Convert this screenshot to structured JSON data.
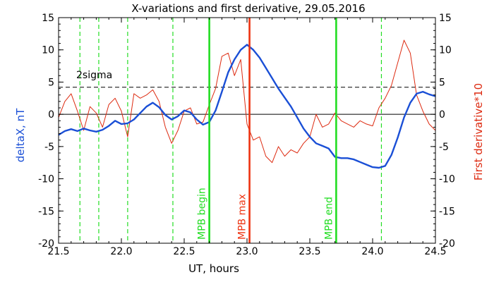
{
  "chart_data": {
    "type": "line",
    "title": "X-variations and first derivative, 29.05.2016",
    "xlabel": "UT, hours",
    "ylabel": "deltaX, nT",
    "ylabel_right": "First derivative*10",
    "xlim": [
      21.5,
      24.5
    ],
    "ylim": [
      -20,
      15
    ],
    "ylim_right": [
      -20,
      15
    ],
    "x_ticks": [
      "21.5",
      "22.0",
      "22.5",
      "23.0",
      "23.5",
      "24.0",
      "24.5"
    ],
    "y_ticks": [
      "-20",
      "-15",
      "-10",
      "-5",
      "0",
      "5",
      "10",
      "15"
    ],
    "y_ticks_right": [
      "-20",
      "-15",
      "-10",
      "-5",
      "0",
      "5",
      "10",
      "15"
    ],
    "colors": {
      "deltaX": "#1a4fd6",
      "derivative": "#dd2a10",
      "mpb_edge": "#22dd22",
      "mpb_max": "#ee3311",
      "axis_left_label": "#1a4fd6",
      "axis_right_label": "#dd2a10"
    },
    "annotations": {
      "sigma_label": "2sigma",
      "sigma_value": 4.2,
      "zero_line": 0,
      "dashed_verticals": [
        21.67,
        21.82,
        22.05,
        22.41,
        24.07
      ],
      "markers": [
        {
          "label": "MPB begin",
          "x": 22.7,
          "kind": "edge"
        },
        {
          "label": "MPB max",
          "x": 23.02,
          "kind": "max"
        },
        {
          "label": "MPB end",
          "x": 23.71,
          "kind": "edge"
        }
      ]
    },
    "series": [
      {
        "key": "deltaX",
        "x": [
          21.5,
          21.55,
          21.6,
          21.65,
          21.7,
          21.75,
          21.8,
          21.85,
          21.9,
          21.95,
          22.0,
          22.05,
          22.1,
          22.15,
          22.2,
          22.25,
          22.3,
          22.35,
          22.4,
          22.45,
          22.5,
          22.55,
          22.6,
          22.65,
          22.7,
          22.75,
          22.8,
          22.85,
          22.9,
          22.95,
          23.0,
          23.05,
          23.1,
          23.15,
          23.2,
          23.25,
          23.3,
          23.35,
          23.4,
          23.45,
          23.5,
          23.55,
          23.6,
          23.65,
          23.7,
          23.75,
          23.8,
          23.85,
          23.9,
          23.95,
          24.0,
          24.05,
          24.1,
          24.15,
          24.2,
          24.25,
          24.3,
          24.35,
          24.4,
          24.45,
          24.5
        ],
        "y": [
          -3.2,
          -2.6,
          -2.3,
          -2.6,
          -2.2,
          -2.5,
          -2.7,
          -2.4,
          -1.8,
          -1.0,
          -1.5,
          -1.4,
          -0.8,
          0.2,
          1.2,
          1.8,
          1.1,
          -0.1,
          -0.8,
          -0.3,
          0.6,
          0.3,
          -0.8,
          -1.6,
          -1.2,
          0.6,
          3.5,
          6.5,
          8.5,
          10.0,
          10.8,
          10.0,
          8.8,
          7.2,
          5.6,
          4.0,
          2.6,
          1.2,
          -0.5,
          -2.2,
          -3.5,
          -4.5,
          -4.9,
          -5.3,
          -6.6,
          -6.8,
          -6.8,
          -7.0,
          -7.4,
          -7.8,
          -8.2,
          -8.3,
          -8.0,
          -6.3,
          -3.6,
          -0.5,
          1.8,
          3.2,
          3.5,
          3.1,
          2.8
        ]
      },
      {
        "key": "derivative",
        "x": [
          21.5,
          21.55,
          21.6,
          21.65,
          21.7,
          21.75,
          21.8,
          21.85,
          21.9,
          21.95,
          22.0,
          22.05,
          22.1,
          22.15,
          22.2,
          22.25,
          22.3,
          22.35,
          22.4,
          22.45,
          22.5,
          22.55,
          22.6,
          22.65,
          22.7,
          22.75,
          22.8,
          22.85,
          22.9,
          22.95,
          23.0,
          23.05,
          23.1,
          23.15,
          23.2,
          23.25,
          23.3,
          23.35,
          23.4,
          23.45,
          23.5,
          23.55,
          23.6,
          23.65,
          23.7,
          23.75,
          23.8,
          23.85,
          23.9,
          23.95,
          24.0,
          24.05,
          24.1,
          24.15,
          24.2,
          24.25,
          24.3,
          24.35,
          24.4,
          24.45,
          24.5
        ],
        "y": [
          -0.5,
          2.0,
          3.2,
          0.5,
          -2.5,
          1.2,
          0.2,
          -2.0,
          1.5,
          2.5,
          0.5,
          -3.5,
          3.2,
          2.5,
          3.0,
          3.8,
          2.0,
          -2.0,
          -4.5,
          -2.5,
          0.5,
          1.0,
          -1.5,
          -1.2,
          1.5,
          4.0,
          9.0,
          9.5,
          6.0,
          8.5,
          -1.5,
          -4.0,
          -3.5,
          -6.5,
          -7.5,
          -5.0,
          -6.5,
          -5.5,
          -6.0,
          -4.5,
          -3.5,
          0.0,
          -2.0,
          -1.5,
          0.2,
          -1.0,
          -1.5,
          -2.0,
          -1.0,
          -1.5,
          -1.8,
          1.0,
          2.5,
          4.5,
          8.0,
          11.5,
          9.5,
          3.0,
          0.5,
          -1.5,
          -2.5
        ]
      }
    ]
  }
}
